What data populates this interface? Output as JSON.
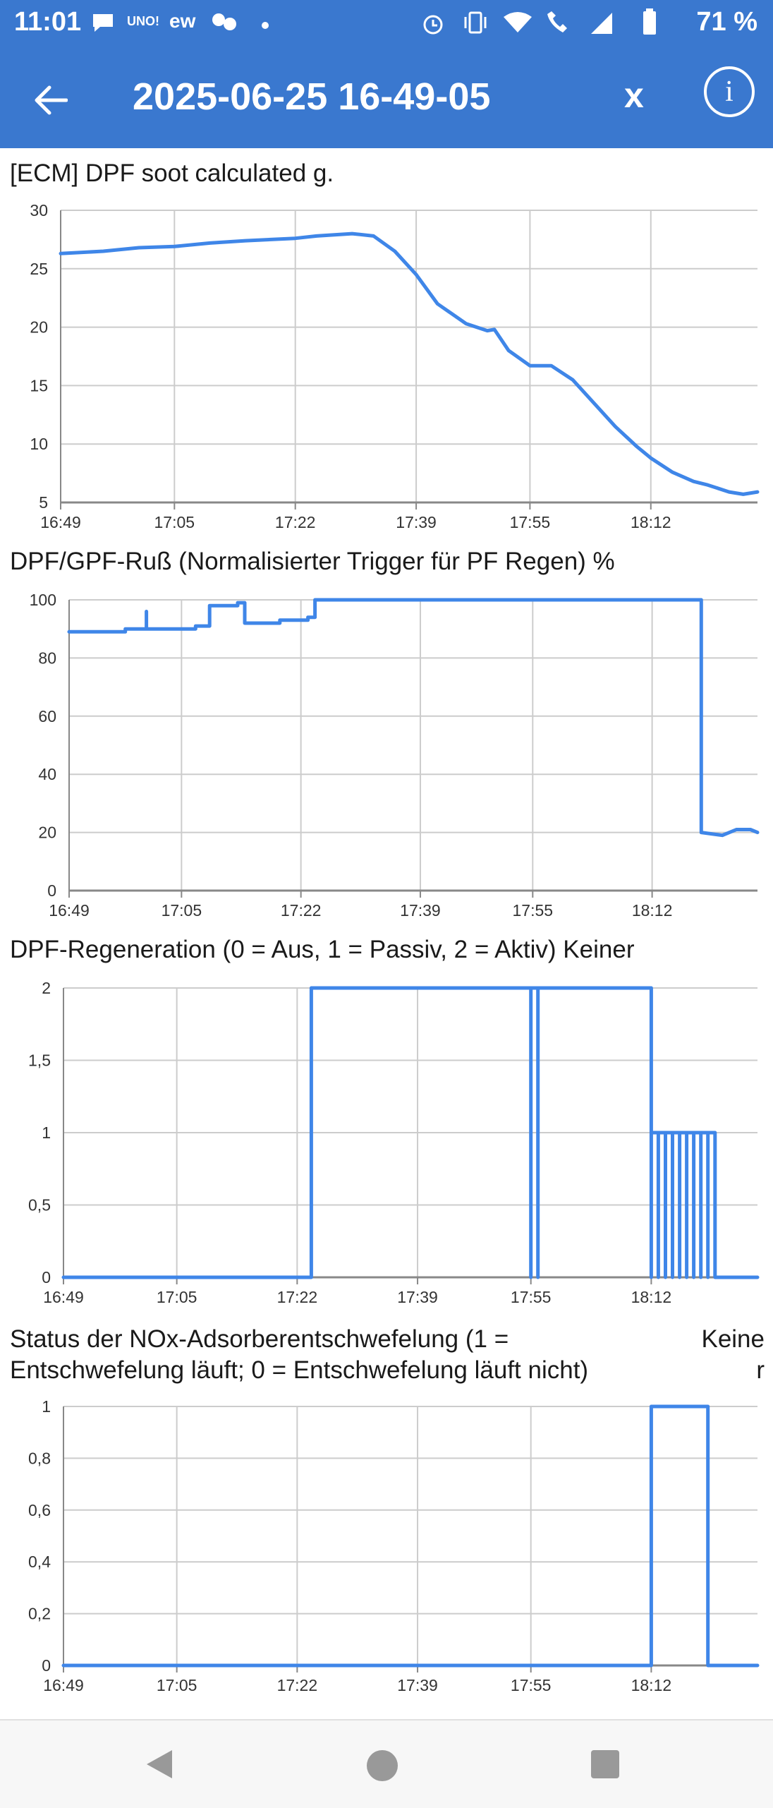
{
  "status_bar": {
    "time": "11:01",
    "battery_percent": "71 %",
    "icons": [
      "chat-bubble-icon",
      "uno-icon",
      "ew-icon",
      "meeting-icon",
      "dot-icon",
      "alarm-icon",
      "vibrate-icon",
      "wifi-icon",
      "wifi-calling-icon",
      "signal-icon",
      "battery-icon"
    ]
  },
  "app_bar": {
    "title": "2025-06-25 16-49-05",
    "close_label": "x",
    "info_label": "i"
  },
  "colors": {
    "accent": "#3a78cf",
    "line": "#3f86e8",
    "grid": "#cccccc"
  },
  "chart_data": [
    {
      "type": "line",
      "title": "[ECM] DPF soot calculated  g.",
      "x_ticks": [
        "16:49",
        "17:05",
        "17:22",
        "17:39",
        "17:55",
        "18:12"
      ],
      "y_ticks": [
        "5",
        "10",
        "15",
        "20",
        "25",
        "30"
      ],
      "ylim": [
        5,
        30
      ],
      "xlim": [
        "16:49",
        "18:27"
      ],
      "grid": true,
      "series": [
        {
          "values": [
            [
              "16:49",
              26.3
            ],
            [
              "16:55",
              26.5
            ],
            [
              "17:00",
              26.8
            ],
            [
              "17:05",
              26.9
            ],
            [
              "17:10",
              27.2
            ],
            [
              "17:15",
              27.4
            ],
            [
              "17:22",
              27.6
            ],
            [
              "17:25",
              27.8
            ],
            [
              "17:30",
              28.0
            ],
            [
              "17:33",
              27.8
            ],
            [
              "17:36",
              26.5
            ],
            [
              "17:39",
              24.5
            ],
            [
              "17:42",
              22.0
            ],
            [
              "17:46",
              20.3
            ],
            [
              "17:49",
              19.7
            ],
            [
              "17:50",
              19.8
            ],
            [
              "17:52",
              18.0
            ],
            [
              "17:55",
              16.7
            ],
            [
              "17:58",
              16.7
            ],
            [
              "18:01",
              15.5
            ],
            [
              "18:04",
              13.5
            ],
            [
              "18:07",
              11.5
            ],
            [
              "18:10",
              9.8
            ],
            [
              "18:12",
              8.8
            ],
            [
              "18:15",
              7.6
            ],
            [
              "18:18",
              6.8
            ],
            [
              "18:20",
              6.5
            ],
            [
              "18:23",
              5.9
            ],
            [
              "18:25",
              5.7
            ],
            [
              "18:27",
              5.9
            ]
          ]
        }
      ]
    },
    {
      "type": "line",
      "title": "DPF/GPF-Ruß (Normalisierter Trigger für PF Regen)  %",
      "x_ticks": [
        "16:49",
        "17:05",
        "17:22",
        "17:39",
        "17:55",
        "18:12"
      ],
      "y_ticks": [
        "0",
        "20",
        "40",
        "60",
        "80",
        "100"
      ],
      "ylim": [
        0,
        100
      ],
      "xlim": [
        "16:49",
        "18:27"
      ],
      "grid": true,
      "series": [
        {
          "values": [
            [
              "16:49",
              89
            ],
            [
              "16:57",
              89
            ],
            [
              "16:57",
              90
            ],
            [
              "17:00",
              90
            ],
            [
              "17:00",
              96
            ],
            [
              "17:00",
              90
            ],
            [
              "17:07",
              90
            ],
            [
              "17:07",
              91
            ],
            [
              "17:09",
              91
            ],
            [
              "17:09",
              98
            ],
            [
              "17:13",
              98
            ],
            [
              "17:13",
              99
            ],
            [
              "17:14",
              99
            ],
            [
              "17:14",
              92
            ],
            [
              "17:19",
              92
            ],
            [
              "17:19",
              93
            ],
            [
              "17:23",
              93
            ],
            [
              "17:23",
              94
            ],
            [
              "17:24",
              94
            ],
            [
              "17:24",
              100
            ],
            [
              "18:19",
              100
            ],
            [
              "18:19",
              20
            ],
            [
              "18:22",
              19
            ],
            [
              "18:24",
              21
            ],
            [
              "18:26",
              21
            ],
            [
              "18:27",
              20
            ]
          ]
        }
      ]
    },
    {
      "type": "line",
      "title": "DPF-Regeneration (0 = Aus, 1 = Passiv, 2 = Aktiv)  Keiner",
      "x_ticks": [
        "16:49",
        "17:05",
        "17:22",
        "17:39",
        "17:55",
        "18:12"
      ],
      "y_ticks": [
        "0",
        "0,5",
        "1",
        "1,5",
        "2"
      ],
      "ylim": [
        0,
        2
      ],
      "xlim": [
        "16:49",
        "18:27"
      ],
      "grid": true,
      "series": [
        {
          "values": [
            [
              "16:49",
              0
            ],
            [
              "17:24",
              0
            ],
            [
              "17:24",
              2
            ],
            [
              "17:55",
              2
            ],
            [
              "17:55",
              0
            ],
            [
              "17:55",
              0
            ],
            [
              "17:55",
              2
            ],
            [
              "17:56",
              2
            ],
            [
              "17:56",
              0
            ],
            [
              "17:56",
              0
            ],
            [
              "17:56",
              2
            ],
            [
              "18:12",
              2
            ],
            [
              "18:12",
              1
            ],
            [
              "18:12",
              0
            ],
            [
              "18:12",
              1
            ],
            [
              "18:13",
              1
            ],
            [
              "18:13",
              0
            ],
            [
              "18:13",
              1
            ],
            [
              "18:14",
              1
            ],
            [
              "18:14",
              0
            ],
            [
              "18:14",
              1
            ],
            [
              "18:15",
              1
            ],
            [
              "18:15",
              0
            ],
            [
              "18:15",
              1
            ],
            [
              "18:16",
              1
            ],
            [
              "18:16",
              0
            ],
            [
              "18:16",
              1
            ],
            [
              "18:17",
              1
            ],
            [
              "18:17",
              0
            ],
            [
              "18:17",
              1
            ],
            [
              "18:18",
              1
            ],
            [
              "18:18",
              0
            ],
            [
              "18:18",
              1
            ],
            [
              "18:19",
              1
            ],
            [
              "18:19",
              0
            ],
            [
              "18:19",
              1
            ],
            [
              "18:20",
              1
            ],
            [
              "18:20",
              0
            ],
            [
              "18:20",
              1
            ],
            [
              "18:21",
              1
            ],
            [
              "18:21",
              0
            ],
            [
              "18:27",
              0
            ]
          ]
        }
      ]
    },
    {
      "type": "line",
      "title_lines": [
        "Status der NOx-Adsorberentschwefelung (1 =",
        "Entschwefelung läuft; 0 = Entschwefelung läuft nicht)"
      ],
      "unit_lines": [
        "Keine",
        "r"
      ],
      "x_ticks": [
        "16:49",
        "17:05",
        "17:22",
        "17:39",
        "17:55",
        "18:12"
      ],
      "y_ticks": [
        "0",
        "0,2",
        "0,4",
        "0,6",
        "0,8",
        "1"
      ],
      "ylim": [
        0,
        1
      ],
      "xlim": [
        "16:49",
        "18:27"
      ],
      "grid": true,
      "series": [
        {
          "values": [
            [
              "16:49",
              0
            ],
            [
              "18:12",
              0
            ],
            [
              "18:12",
              1
            ],
            [
              "18:20",
              1
            ],
            [
              "18:20",
              0
            ],
            [
              "18:27",
              0
            ]
          ]
        }
      ]
    }
  ],
  "nav_bar": {
    "buttons": [
      "back-triangle-icon",
      "home-circle-icon",
      "recents-square-icon"
    ]
  }
}
